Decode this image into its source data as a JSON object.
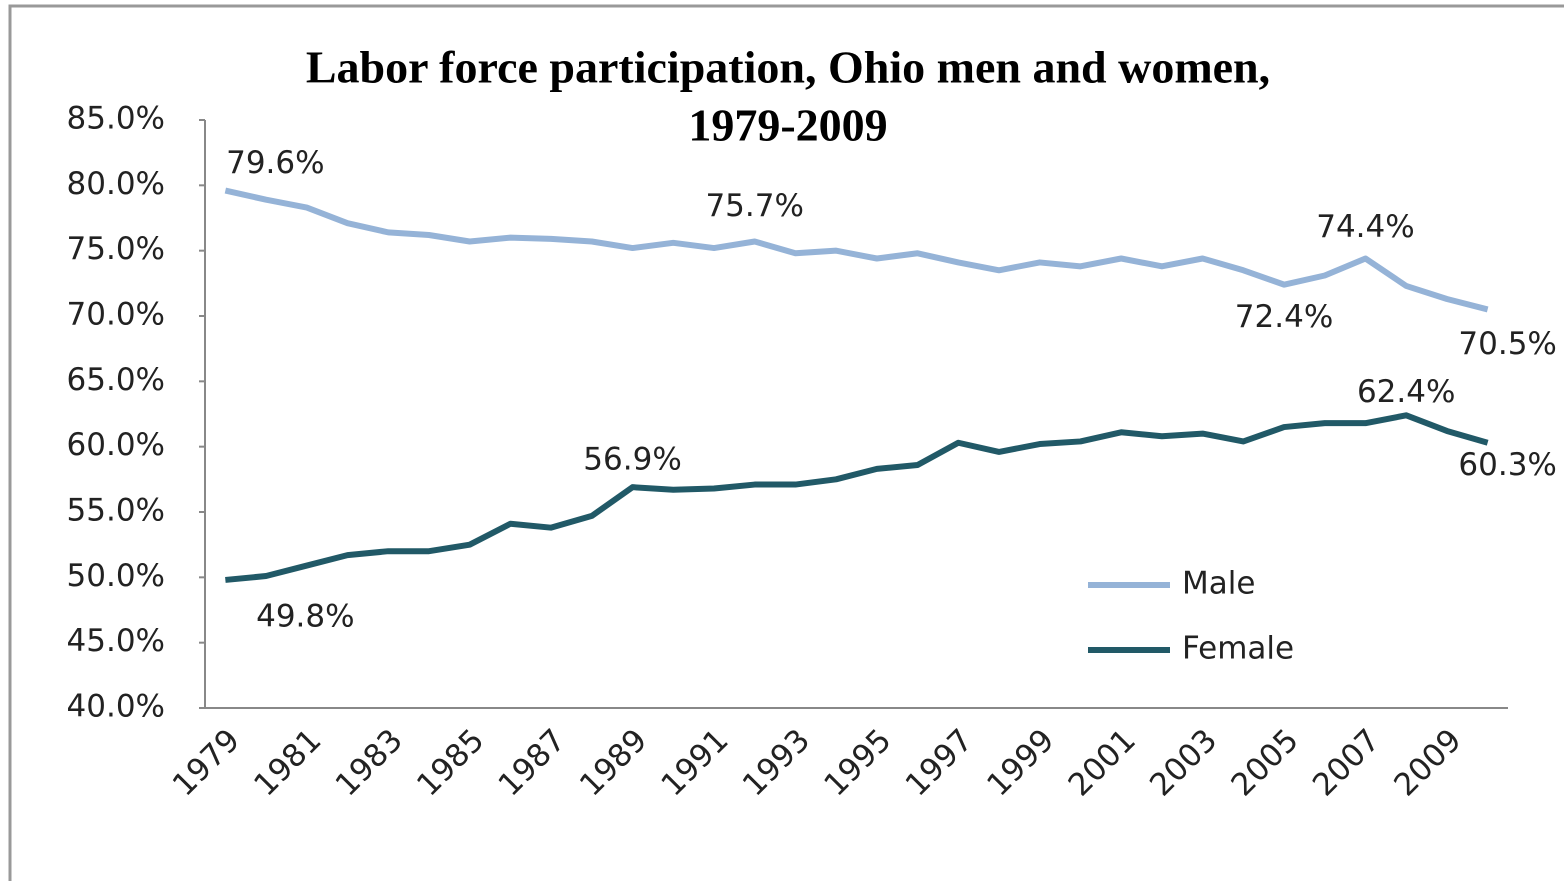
{
  "chart_data": {
    "type": "line",
    "title": "Labor force participation, Ohio men and women,",
    "subtitle": "1979-2009",
    "categories": [
      "1979",
      null,
      "1981",
      null,
      "1983",
      null,
      "1985",
      null,
      "1987",
      null,
      "1989",
      null,
      "1991",
      null,
      "1993",
      null,
      "1995",
      null,
      "1997",
      null,
      "1999",
      null,
      "2001",
      null,
      "2003",
      null,
      "2005",
      null,
      "2007",
      null,
      "2009",
      null
    ],
    "series": [
      {
        "name": "Male",
        "color": "#95b3d7",
        "values": [
          79.6,
          78.9,
          78.3,
          77.1,
          76.4,
          76.2,
          75.7,
          76.0,
          75.9,
          75.7,
          75.2,
          75.6,
          75.2,
          75.7,
          74.8,
          75.0,
          74.4,
          74.8,
          74.1,
          73.5,
          74.1,
          73.8,
          74.4,
          73.8,
          74.4,
          73.5,
          72.4,
          73.1,
          74.4,
          72.3,
          71.3,
          70.5
        ],
        "value_labels": [
          "79.6%",
          null,
          null,
          null,
          null,
          null,
          null,
          null,
          null,
          null,
          null,
          null,
          null,
          "75.7%",
          null,
          null,
          null,
          null,
          null,
          null,
          null,
          null,
          null,
          null,
          null,
          null,
          "72.4%",
          null,
          "74.4%",
          null,
          null,
          "70.5%"
        ]
      },
      {
        "name": "Female",
        "color": "#215967",
        "values": [
          49.8,
          50.1,
          50.9,
          51.7,
          52.0,
          52.0,
          52.5,
          54.1,
          53.8,
          54.7,
          56.9,
          56.7,
          56.8,
          57.1,
          57.1,
          57.5,
          58.3,
          58.6,
          60.3,
          59.6,
          60.2,
          60.4,
          61.1,
          60.8,
          61.0,
          60.4,
          61.5,
          61.8,
          61.8,
          62.4,
          61.2,
          60.3
        ],
        "value_labels": [
          "49.8%",
          null,
          null,
          null,
          null,
          null,
          null,
          null,
          null,
          null,
          "56.9%",
          null,
          null,
          null,
          null,
          null,
          null,
          null,
          null,
          null,
          null,
          null,
          null,
          null,
          null,
          null,
          null,
          null,
          null,
          "62.4%",
          null,
          "60.3%"
        ]
      }
    ],
    "ylim": [
      40,
      85
    ],
    "yticks": [
      {
        "value": 40,
        "label": "40.0%"
      },
      {
        "value": 45,
        "label": "45.0%"
      },
      {
        "value": 50,
        "label": "50.0%"
      },
      {
        "value": 55,
        "label": "55.0%"
      },
      {
        "value": 60,
        "label": "60.0%"
      },
      {
        "value": 65,
        "label": "65.0%"
      },
      {
        "value": 70,
        "label": "70.0%"
      },
      {
        "value": 75,
        "label": "75.0%"
      },
      {
        "value": 80,
        "label": "80.0%"
      },
      {
        "value": 85,
        "label": "85.0%"
      }
    ],
    "grid": false,
    "legend": "right"
  }
}
